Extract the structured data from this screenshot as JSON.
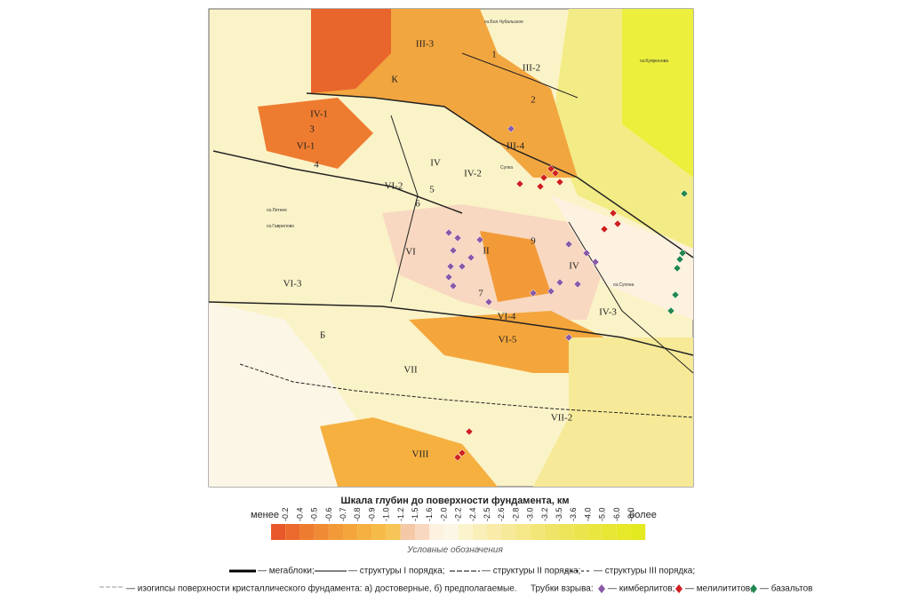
{
  "map": {
    "regions": [
      "III-3",
      "К",
      "1",
      "III-2",
      "2",
      "IV-1",
      "3",
      "VI-1",
      "4",
      "III-4",
      "IV",
      "IV-2",
      "VI-2",
      "5",
      "6",
      "VI",
      "II",
      "9",
      "IV",
      "VI-3",
      "7",
      "VI-4",
      "IV-3",
      "Б",
      "VI-5",
      "VII",
      "VII-2",
      "VIII"
    ],
    "places": [
      "оз.Бол.Чубальское",
      "оз.Купрюнова",
      "оз.Летнее",
      "оз.Гаврилово",
      "оз.Сухона",
      "Сулка"
    ]
  },
  "scale": {
    "title": "Шкала глубин до поверхности фундамента, км",
    "less": "менее",
    "more": "более",
    "ticks": [
      "-0.2",
      "-0.4",
      "-0.5",
      "-0.6",
      "-0.7",
      "-0.8",
      "-0.9",
      "-1.0",
      "-1.2",
      "-1.5",
      "-1.6",
      "-2.0",
      "-2.2",
      "-2.4",
      "-2.5",
      "-2.6",
      "-2.8",
      "-3.0",
      "-3.2",
      "-3.5",
      "-3.6",
      "-4.0",
      "-5.0",
      "-6.0",
      "-8.0"
    ],
    "colors": [
      "#e8582a",
      "#eb6a2c",
      "#ee7c30",
      "#f08a34",
      "#f29a38",
      "#f4a63c",
      "#f5b040",
      "#f6ba48",
      "#f7c458",
      "#f5c8a8",
      "#f8d8c0",
      "#fdf1e0",
      "#fbf6e6",
      "#fbf3cc",
      "#f9efb8",
      "#f8eca8",
      "#f6ea98",
      "#f4e888",
      "#f2e678",
      "#f0e468",
      "#eee45a",
      "#ece44c",
      "#eae640",
      "#e8e634",
      "#e6e82a",
      "#e4ea20"
    ]
  },
  "legend": {
    "title": "Условные обозначения",
    "megablocks": "— мегаблоки;",
    "order1": "— структуры I порядка;",
    "order2": "— структуры II порядка;",
    "order3": "— структуры III порядка;",
    "isohypses": "— изогипсы поверхности кристаллического фундамента: а) достоверные, б) предполагаемые.",
    "pipes": "Трубки взрыва:",
    "kimberlite": "— кимберлитов;",
    "melilitite": "— мелилититов,",
    "basalt": "— базальтов"
  }
}
